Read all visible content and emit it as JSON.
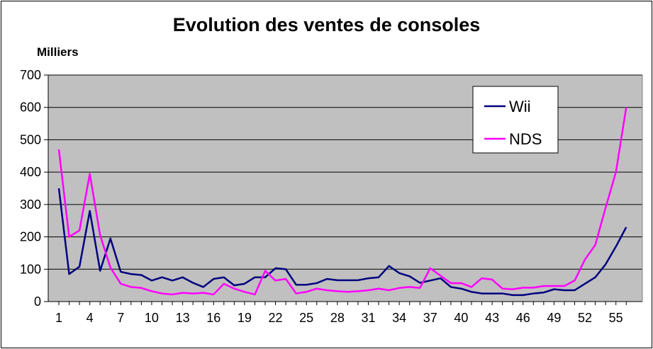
{
  "chart_data": {
    "type": "line",
    "title": "Evolution des ventes de consoles",
    "ylabel": "Milliers",
    "xlabel": "",
    "ylim": [
      0,
      700
    ],
    "yticks": [
      0,
      100,
      200,
      300,
      400,
      500,
      600,
      700
    ],
    "xtick_labels": [
      "1",
      "4",
      "7",
      "10",
      "13",
      "16",
      "19",
      "22",
      "25",
      "28",
      "31",
      "34",
      "37",
      "40",
      "43",
      "46",
      "49",
      "52",
      "55"
    ],
    "x": [
      1,
      2,
      3,
      4,
      5,
      6,
      7,
      8,
      9,
      10,
      11,
      12,
      13,
      14,
      15,
      16,
      17,
      18,
      19,
      20,
      21,
      22,
      23,
      24,
      25,
      26,
      27,
      28,
      29,
      30,
      31,
      32,
      33,
      34,
      35,
      36,
      37,
      38,
      39,
      40,
      41,
      42,
      43,
      44,
      45,
      46,
      47,
      48,
      49,
      50,
      51,
      52,
      53,
      54,
      55,
      56
    ],
    "grid": true,
    "plot_background": "#c0c0c0",
    "legend_position": "top-right",
    "series": [
      {
        "name": "Wii",
        "color": "#000080",
        "values": [
          350,
          85,
          108,
          280,
          95,
          195,
          92,
          85,
          82,
          65,
          75,
          65,
          75,
          58,
          45,
          70,
          75,
          50,
          55,
          75,
          75,
          103,
          100,
          52,
          52,
          57,
          70,
          66,
          66,
          66,
          72,
          75,
          110,
          88,
          78,
          58,
          65,
          72,
          45,
          40,
          30,
          25,
          25,
          25,
          20,
          20,
          25,
          28,
          38,
          35,
          35,
          55,
          75,
          115,
          170,
          230
        ]
      },
      {
        "name": "NDS",
        "color": "#ff00ff",
        "values": [
          470,
          200,
          220,
          395,
          205,
          105,
          55,
          45,
          42,
          32,
          25,
          22,
          27,
          25,
          27,
          22,
          55,
          40,
          30,
          22,
          95,
          65,
          70,
          25,
          30,
          40,
          35,
          32,
          30,
          32,
          35,
          40,
          35,
          42,
          45,
          42,
          103,
          80,
          57,
          57,
          45,
          72,
          68,
          40,
          38,
          43,
          43,
          48,
          48,
          48,
          65,
          130,
          175,
          290,
          400,
          600
        ]
      }
    ]
  }
}
